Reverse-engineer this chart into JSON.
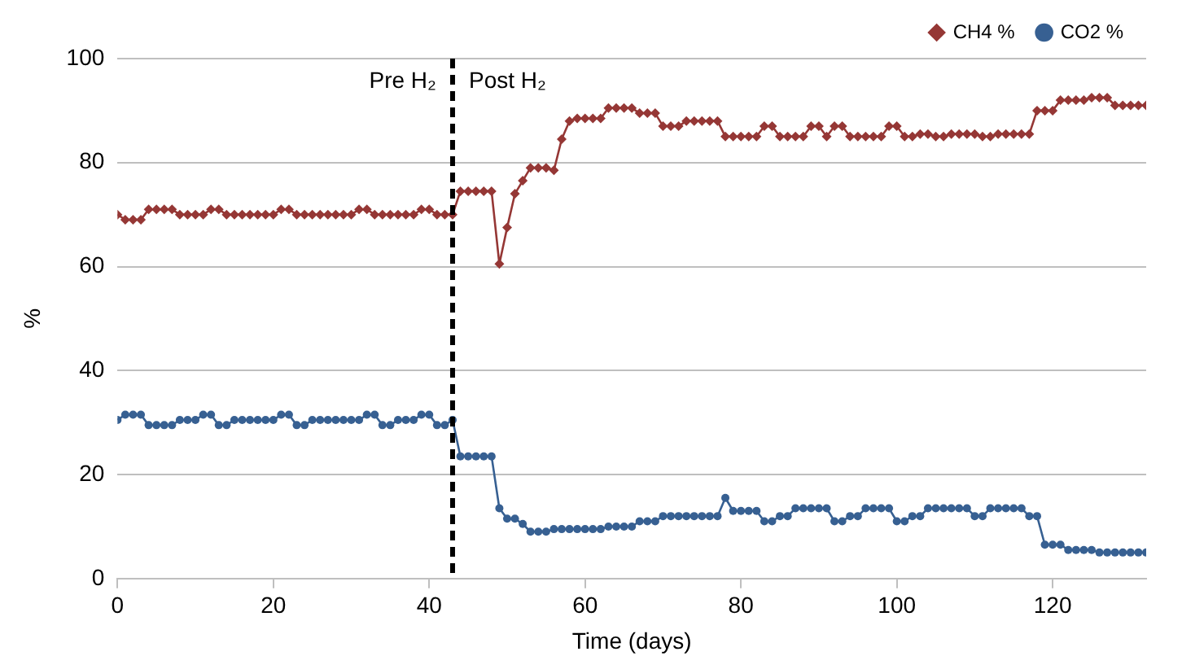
{
  "chart_data": {
    "type": "line",
    "xlabel": "Time (days)",
    "ylabel": "%",
    "x": [
      0,
      1,
      2,
      3,
      4,
      5,
      6,
      7,
      8,
      9,
      10,
      11,
      12,
      13,
      14,
      15,
      16,
      17,
      18,
      19,
      20,
      21,
      22,
      23,
      24,
      25,
      26,
      27,
      28,
      29,
      30,
      31,
      32,
      33,
      34,
      35,
      36,
      37,
      38,
      39,
      40,
      41,
      42,
      43,
      44,
      45,
      46,
      47,
      48,
      49,
      50,
      51,
      52,
      53,
      54,
      55,
      56,
      57,
      58,
      59,
      60,
      61,
      62,
      63,
      64,
      65,
      66,
      67,
      68,
      69,
      70,
      71,
      72,
      73,
      74,
      75,
      76,
      77,
      78,
      79,
      80,
      81,
      82,
      83,
      84,
      85,
      86,
      87,
      88,
      89,
      90,
      91,
      92,
      93,
      94,
      95,
      96,
      97,
      98,
      99,
      100,
      101,
      102,
      103,
      104,
      105,
      106,
      107,
      108,
      109,
      110,
      111,
      112,
      113,
      114,
      115,
      116,
      117,
      118,
      119,
      120,
      121,
      122,
      123,
      124,
      125,
      126,
      127,
      128,
      129,
      130,
      131,
      132
    ],
    "series": [
      {
        "name": "CH4 %",
        "color": "#953735",
        "marker": "diamond",
        "values": [
          70,
          69,
          69,
          69,
          71,
          71,
          71,
          71,
          70,
          70,
          70,
          70,
          71,
          71,
          70,
          70,
          70,
          70,
          70,
          70,
          70,
          71,
          71,
          70,
          70,
          70,
          70,
          70,
          70,
          70,
          70,
          71,
          71,
          70,
          70,
          70,
          70,
          70,
          70,
          71,
          71,
          70,
          70,
          70,
          74.5,
          74.5,
          74.5,
          74.5,
          74.5,
          60.5,
          67.5,
          74,
          76.5,
          79,
          79,
          79,
          78.5,
          84.5,
          88,
          88.5,
          88.5,
          88.5,
          88.5,
          90.5,
          90.5,
          90.5,
          90.5,
          89.5,
          89.5,
          89.5,
          87,
          87,
          87,
          88,
          88,
          88,
          88,
          88,
          85,
          85,
          85,
          85,
          85,
          87,
          87,
          85,
          85,
          85,
          85,
          87,
          87,
          85,
          87,
          87,
          85,
          85,
          85,
          85,
          85,
          87,
          87,
          85,
          85,
          85.5,
          85.5,
          85,
          85,
          85.5,
          85.5,
          85.5,
          85.5,
          85,
          85,
          85.5,
          85.5,
          85.5,
          85.5,
          85.5,
          90,
          90,
          90,
          92,
          92,
          92,
          92,
          92.5,
          92.5,
          92.5,
          91,
          91,
          91,
          91,
          91
        ]
      },
      {
        "name": "CO2 %",
        "color": "#376092",
        "marker": "circle",
        "values": [
          30.5,
          31.5,
          31.5,
          31.5,
          29.5,
          29.5,
          29.5,
          29.5,
          30.5,
          30.5,
          30.5,
          31.5,
          31.5,
          29.5,
          29.5,
          30.5,
          30.5,
          30.5,
          30.5,
          30.5,
          30.5,
          31.5,
          31.5,
          29.5,
          29.5,
          30.5,
          30.5,
          30.5,
          30.5,
          30.5,
          30.5,
          30.5,
          31.5,
          31.5,
          29.5,
          29.5,
          30.5,
          30.5,
          30.5,
          31.5,
          31.5,
          29.5,
          29.5,
          30.5,
          23.5,
          23.5,
          23.5,
          23.5,
          23.5,
          13.5,
          11.5,
          11.5,
          10.5,
          9,
          9,
          9,
          9.5,
          9.5,
          9.5,
          9.5,
          9.5,
          9.5,
          9.5,
          10,
          10,
          10,
          10,
          11,
          11,
          11,
          12,
          12,
          12,
          12,
          12,
          12,
          12,
          12,
          15.5,
          13,
          13,
          13,
          13,
          11,
          11,
          12,
          12,
          13.5,
          13.5,
          13.5,
          13.5,
          13.5,
          11,
          11,
          12,
          12,
          13.5,
          13.5,
          13.5,
          13.5,
          11,
          11,
          12,
          12,
          13.5,
          13.5,
          13.5,
          13.5,
          13.5,
          13.5,
          12,
          12,
          13.5,
          13.5,
          13.5,
          13.5,
          13.5,
          12,
          12,
          6.5,
          6.5,
          6.5,
          5.5,
          5.5,
          5.5,
          5.5,
          5,
          5,
          5,
          5,
          5,
          5,
          5
        ]
      }
    ],
    "xlim": [
      0,
      132
    ],
    "xticks": [
      0,
      20,
      40,
      60,
      80,
      100,
      120
    ],
    "ylim": [
      0,
      100
    ],
    "yticks": [
      0,
      20,
      40,
      60,
      80,
      100
    ],
    "grid": "y",
    "legend": "top right",
    "ref_lines": [
      {
        "axis": "x",
        "value": 43,
        "color": "#000000",
        "line_style": "dashed"
      }
    ],
    "annotations": [
      "Pre H₂",
      "Post H₂"
    ]
  }
}
